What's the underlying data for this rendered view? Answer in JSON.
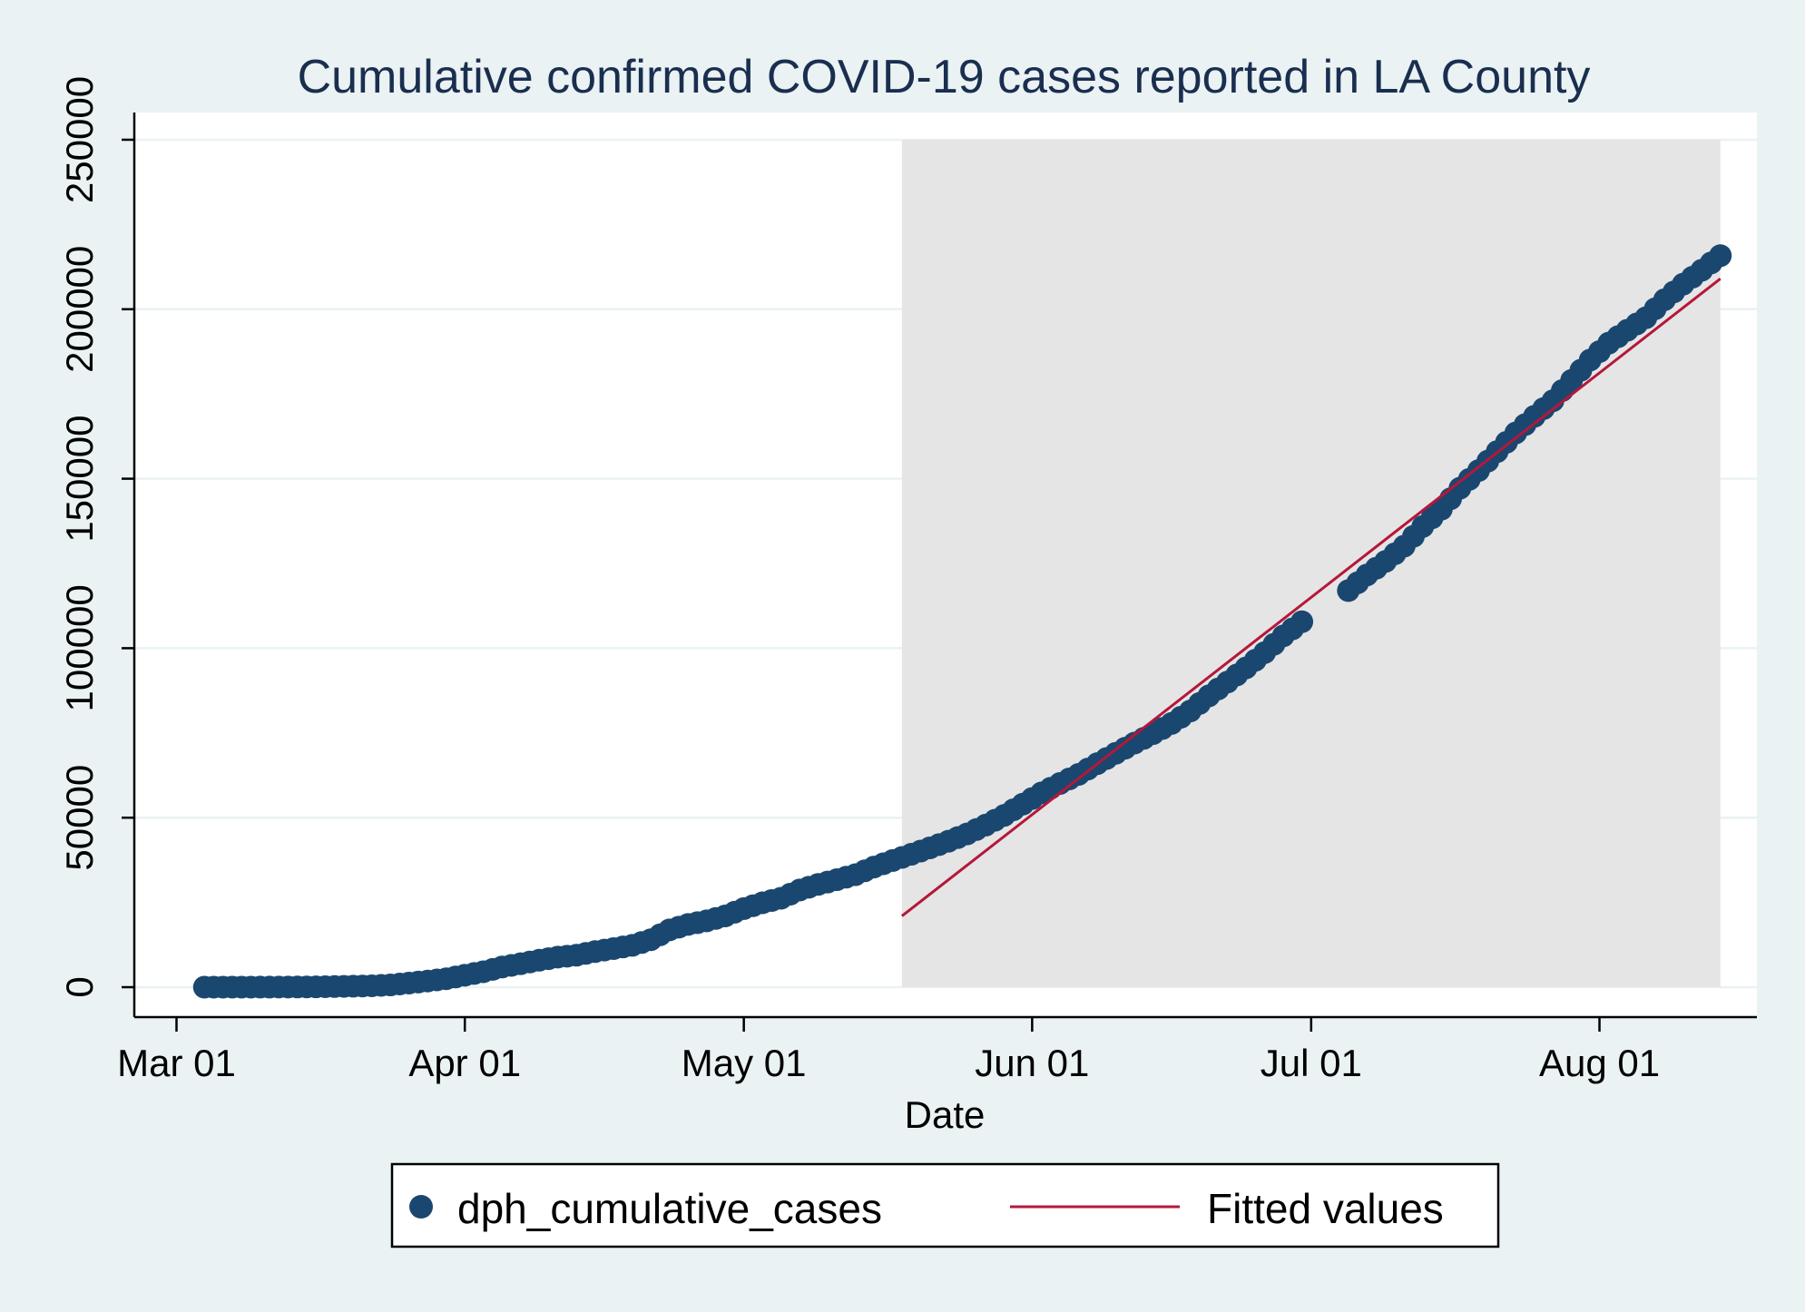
{
  "chart_data": {
    "type": "scatter",
    "title": "Cumulative confirmed COVID-19 cases reported in LA County",
    "xlabel": "Date",
    "ylabel": "",
    "x_axis_type": "date",
    "xlim": [
      "2020-02-28",
      "2020-08-15"
    ],
    "ylim": [
      0,
      250000
    ],
    "x_ticks": [
      {
        "date": "2020-03-01",
        "label": "Mar 01"
      },
      {
        "date": "2020-04-01",
        "label": "Apr 01"
      },
      {
        "date": "2020-05-01",
        "label": "May 01"
      },
      {
        "date": "2020-06-01",
        "label": "Jun 01"
      },
      {
        "date": "2020-07-01",
        "label": "Jul 01"
      },
      {
        "date": "2020-08-01",
        "label": "Aug 01"
      }
    ],
    "y_ticks": [
      0,
      50000,
      100000,
      150000,
      200000,
      250000
    ],
    "y_tick_labels": [
      "0",
      "50000",
      "100000",
      "150000",
      "200000",
      "250000"
    ],
    "grid": true,
    "legend_position": "bottom",
    "shaded_region": {
      "x_start": "2020-05-18",
      "x_end": "2020-08-14",
      "y_start": 0,
      "y_end": 250000,
      "color": "#e5e5e5"
    },
    "series": [
      {
        "name": "dph_cumulative_cases",
        "kind": "scatter",
        "color": "#1a476f",
        "points": [
          [
            "2020-03-04",
            7
          ],
          [
            "2020-03-06",
            11
          ],
          [
            "2020-03-08",
            14
          ],
          [
            "2020-03-10",
            17
          ],
          [
            "2020-03-12",
            32
          ],
          [
            "2020-03-14",
            53
          ],
          [
            "2020-03-16",
            94
          ],
          [
            "2020-03-18",
            190
          ],
          [
            "2020-03-20",
            292
          ],
          [
            "2020-03-22",
            409
          ],
          [
            "2020-03-24",
            662
          ],
          [
            "2020-03-26",
            1216
          ],
          [
            "2020-03-28",
            1804
          ],
          [
            "2020-03-30",
            2474
          ],
          [
            "2020-04-01",
            3518
          ],
          [
            "2020-04-03",
            4566
          ],
          [
            "2020-04-05",
            5940
          ],
          [
            "2020-04-07",
            6910
          ],
          [
            "2020-04-09",
            7955
          ],
          [
            "2020-04-11",
            8873
          ],
          [
            "2020-04-13",
            9420
          ],
          [
            "2020-04-15",
            10496
          ],
          [
            "2020-04-17",
            11391
          ],
          [
            "2020-04-19",
            12341
          ],
          [
            "2020-04-21",
            14000
          ],
          [
            "2020-04-23",
            16900
          ],
          [
            "2020-04-25",
            18500
          ],
          [
            "2020-04-27",
            19567
          ],
          [
            "2020-04-29",
            21017
          ],
          [
            "2020-05-01",
            23182
          ],
          [
            "2020-05-03",
            24894
          ],
          [
            "2020-05-05",
            26238
          ],
          [
            "2020-05-07",
            28665
          ],
          [
            "2020-05-09",
            30319
          ],
          [
            "2020-05-11",
            31703
          ],
          [
            "2020-05-13",
            33180
          ],
          [
            "2020-05-15",
            35447
          ],
          [
            "2020-05-17",
            37360
          ],
          [
            "2020-05-19",
            39199
          ],
          [
            "2020-05-21",
            41092
          ],
          [
            "2020-05-23",
            43052
          ],
          [
            "2020-05-25",
            45200
          ],
          [
            "2020-05-27",
            47800
          ],
          [
            "2020-05-29",
            50680
          ],
          [
            "2020-05-31",
            54000
          ],
          [
            "2020-06-02",
            57300
          ],
          [
            "2020-06-04",
            60100
          ],
          [
            "2020-06-06",
            62780
          ],
          [
            "2020-06-08",
            65930
          ],
          [
            "2020-06-10",
            69000
          ],
          [
            "2020-06-12",
            72000
          ],
          [
            "2020-06-14",
            74800
          ],
          [
            "2020-06-16",
            77820
          ],
          [
            "2020-06-18",
            81470
          ],
          [
            "2020-06-20",
            85940
          ],
          [
            "2020-06-22",
            90000
          ],
          [
            "2020-06-24",
            94200
          ],
          [
            "2020-06-26",
            98700
          ],
          [
            "2020-06-28",
            103620
          ],
          [
            "2020-06-30",
            107800
          ],
          [
            "2020-07-05",
            117000
          ],
          [
            "2020-07-07",
            121600
          ],
          [
            "2020-07-09",
            125600
          ],
          [
            "2020-07-11",
            130100
          ],
          [
            "2020-07-13",
            135900
          ],
          [
            "2020-07-15",
            141000
          ],
          [
            "2020-07-17",
            147200
          ],
          [
            "2020-07-19",
            152400
          ],
          [
            "2020-07-21",
            158000
          ],
          [
            "2020-07-23",
            163500
          ],
          [
            "2020-07-25",
            168400
          ],
          [
            "2020-07-27",
            173000
          ],
          [
            "2020-07-29",
            179000
          ],
          [
            "2020-07-31",
            185000
          ],
          [
            "2020-08-02",
            190000
          ],
          [
            "2020-08-04",
            193800
          ],
          [
            "2020-08-06",
            197500
          ],
          [
            "2020-08-08",
            202800
          ],
          [
            "2020-08-10",
            207400
          ],
          [
            "2020-08-12",
            211500
          ],
          [
            "2020-08-14",
            215800
          ]
        ]
      },
      {
        "name": "Fitted values",
        "kind": "line",
        "color": "#b5173a",
        "points": [
          [
            "2020-05-18",
            21000
          ],
          [
            "2020-08-14",
            209000
          ]
        ]
      }
    ]
  }
}
